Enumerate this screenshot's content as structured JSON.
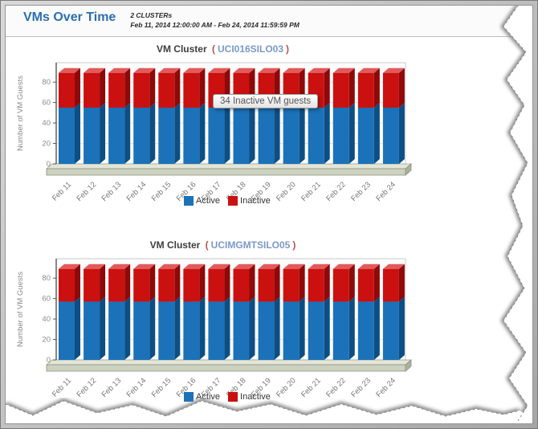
{
  "header": {
    "title": "VMs Over Time",
    "count_label": "2 CLUSTERs",
    "date_range": "Feb 11, 2014 12:00:00 AM - Feb 24, 2014 11:59:59 PM"
  },
  "chrome": {
    "paren_open": "(",
    "paren_close": ")"
  },
  "tooltip": {
    "text": "34 Inactive VM guests"
  },
  "colors": {
    "active": "#1b72b8",
    "active_top": "#5d9fd6",
    "active_side": "#0d4e83",
    "inactive": "#cb1010",
    "inactive_top": "#e25a5a",
    "inactive_side": "#8e0909",
    "link_blue": "#7a99c9",
    "paren_red": "#c0504d",
    "title_blue": "#2b6fae"
  },
  "charts": [
    {
      "title_label": "VM Cluster",
      "cluster_name": "UCI016SILO03"
    },
    {
      "title_label": "VM Cluster",
      "cluster_name": "UCIMGMTSILO05"
    }
  ],
  "chart_data": [
    {
      "type": "bar",
      "stacked": true,
      "title": "VM Cluster ( UCI016SILO03 )",
      "categories": [
        "Feb 11",
        "Feb 12",
        "Feb 13",
        "Feb 14",
        "Feb 15",
        "Feb 16",
        "Feb 17",
        "Feb 18",
        "Feb 19",
        "Feb 20",
        "Feb 21",
        "Feb 22",
        "Feb 23",
        "Feb 24"
      ],
      "series": [
        {
          "name": "Active",
          "values": [
            55,
            55,
            55,
            55,
            55,
            55,
            55,
            55,
            55,
            55,
            55,
            55,
            55,
            55
          ]
        },
        {
          "name": "Inactive",
          "values": [
            34,
            34,
            34,
            34,
            34,
            34,
            34,
            34,
            34,
            34,
            34,
            34,
            34,
            34
          ]
        }
      ],
      "xlabel": "",
      "ylabel": "Number of VM Guests",
      "ylim": [
        0,
        99
      ],
      "yticks": [
        0,
        20,
        40,
        60,
        80
      ],
      "grid": true,
      "legend_position": "bottom"
    },
    {
      "type": "bar",
      "stacked": true,
      "title": "VM Cluster ( UCIMGMTSILO05 )",
      "categories": [
        "Feb 11",
        "Feb 12",
        "Feb 13",
        "Feb 14",
        "Feb 15",
        "Feb 16",
        "Feb 17",
        "Feb 18",
        "Feb 19",
        "Feb 20",
        "Feb 21",
        "Feb 22",
        "Feb 23",
        "Feb 24"
      ],
      "series": [
        {
          "name": "Active",
          "values": [
            57,
            57,
            57,
            57,
            57,
            57,
            57,
            57,
            57,
            57,
            57,
            57,
            57,
            57
          ]
        },
        {
          "name": "Inactive",
          "values": [
            32,
            32,
            32,
            32,
            32,
            32,
            32,
            32,
            32,
            32,
            32,
            32,
            32,
            32
          ]
        }
      ],
      "xlabel": "",
      "ylabel": "Number of VM Guests",
      "ylim": [
        0,
        99
      ],
      "yticks": [
        0,
        20,
        40,
        60,
        80
      ],
      "grid": true,
      "legend_position": "bottom"
    }
  ]
}
